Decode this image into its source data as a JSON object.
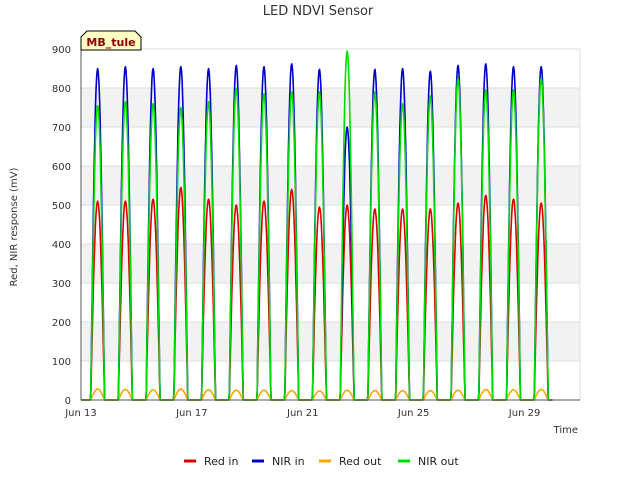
{
  "chart_data": {
    "type": "line",
    "title": "LED NDVI Sensor",
    "xlabel": "Time",
    "ylabel": "Red, NIR response (mV)",
    "badge": "MB_tule",
    "ylim": [
      0,
      900
    ],
    "xlim": [
      "2024-06-13",
      "2024-07-01"
    ],
    "yticks": [
      0,
      100,
      200,
      300,
      400,
      500,
      600,
      700,
      800,
      900
    ],
    "xticks": [
      "Jun 13",
      "Jun 17",
      "Jun 21",
      "Jun 25",
      "Jun 29"
    ],
    "grid": true,
    "legend_position": "bottom",
    "series": [
      {
        "name": "Red in",
        "color": "#dd0000",
        "daily_peaks": [
          510,
          510,
          515,
          545,
          515,
          500,
          510,
          540,
          495,
          500,
          490,
          490,
          490,
          505,
          525,
          515,
          505
        ]
      },
      {
        "name": "NIR in",
        "color": "#0000cc",
        "daily_peaks": [
          850,
          855,
          850,
          855,
          850,
          858,
          855,
          862,
          848,
          700,
          848,
          850,
          843,
          858,
          862,
          855,
          855
        ]
      },
      {
        "name": "Red out",
        "color": "#ffa500",
        "daily_peaks": [
          28,
          27,
          26,
          28,
          26,
          25,
          25,
          24,
          23,
          25,
          24,
          24,
          24,
          25,
          27,
          26,
          27
        ]
      },
      {
        "name": "NIR out",
        "color": "#00dd00",
        "daily_peaks": [
          755,
          765,
          760,
          750,
          765,
          800,
          785,
          790,
          790,
          895,
          790,
          760,
          780,
          825,
          795,
          795,
          825
        ]
      }
    ]
  }
}
